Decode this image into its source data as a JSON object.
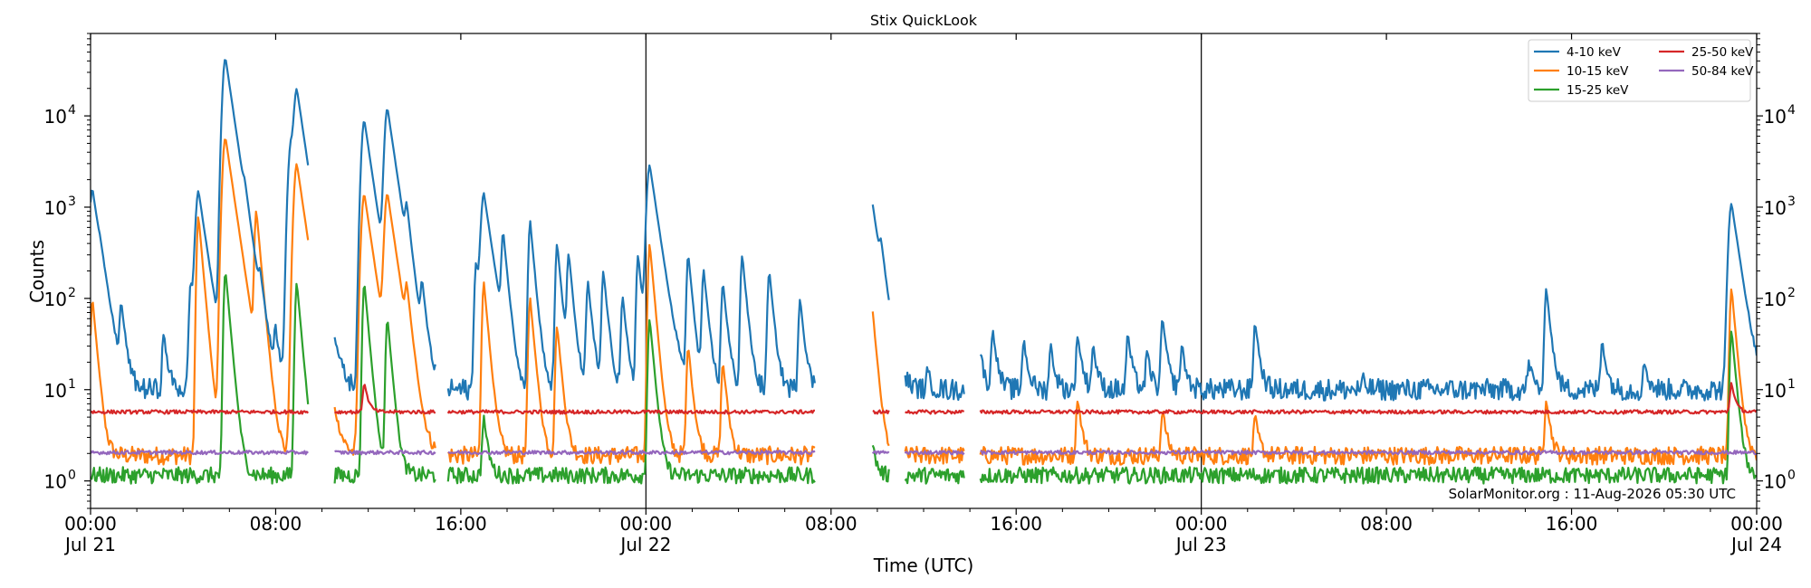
{
  "chart_data": {
    "type": "line",
    "title": "Stix QuickLook",
    "xlabel": "Time (UTC)",
    "ylabel": "Counts",
    "yscale": "log",
    "ylim": [
      0.5,
      80000
    ],
    "xlim": [
      "2026-07-21 00:00",
      "2026-07-24 00:00"
    ],
    "grid": false,
    "legend_position": "top-right",
    "annotation": "SolarMonitor.org : 11-Aug-2026 05:30 UTC",
    "x_ticks": [
      {
        "label": "00:00",
        "sublabel": "Jul 21",
        "time": "2026-07-21 00:00"
      },
      {
        "label": "08:00",
        "sublabel": "",
        "time": "2026-07-21 08:00"
      },
      {
        "label": "16:00",
        "sublabel": "",
        "time": "2026-07-21 16:00"
      },
      {
        "label": "00:00",
        "sublabel": "Jul 22",
        "time": "2026-07-22 00:00"
      },
      {
        "label": "08:00",
        "sublabel": "",
        "time": "2026-07-22 08:00"
      },
      {
        "label": "16:00",
        "sublabel": "",
        "time": "2026-07-22 16:00"
      },
      {
        "label": "00:00",
        "sublabel": "Jul 23",
        "time": "2026-07-23 00:00"
      },
      {
        "label": "08:00",
        "sublabel": "",
        "time": "2026-07-23 08:00"
      },
      {
        "label": "16:00",
        "sublabel": "",
        "time": "2026-07-23 16:00"
      },
      {
        "label": "00:00",
        "sublabel": "Jul 24",
        "time": "2026-07-24 00:00"
      }
    ],
    "y_ticks": [
      {
        "base": "10",
        "exp": "0",
        "value": 1
      },
      {
        "base": "10",
        "exp": "1",
        "value": 10
      },
      {
        "base": "10",
        "exp": "2",
        "value": 100
      },
      {
        "base": "10",
        "exp": "3",
        "value": 1000
      },
      {
        "base": "10",
        "exp": "4",
        "value": 10000
      }
    ],
    "day_boundaries": [
      "2026-07-22 00:00",
      "2026-07-23 00:00"
    ],
    "data_gaps": [
      [
        "2026-07-21 09:25",
        "2026-07-21 10:30"
      ],
      [
        "2026-07-21 14:55",
        "2026-07-21 15:25"
      ],
      [
        "2026-07-22 07:20",
        "2026-07-22 09:45"
      ],
      [
        "2026-07-22 10:30",
        "2026-07-22 11:10"
      ],
      [
        "2026-07-22 13:45",
        "2026-07-22 14:25"
      ]
    ],
    "series": [
      {
        "name": "4-10 keV",
        "color": "#1f77b4",
        "background": 10,
        "noise": 0.12,
        "peaks": [
          {
            "time": "2026-07-21 00:05",
            "value": 1600
          },
          {
            "time": "2026-07-21 00:25",
            "value": 60
          },
          {
            "time": "2026-07-21 01:20",
            "value": 80
          },
          {
            "time": "2026-07-21 03:10",
            "value": 40
          },
          {
            "time": "2026-07-21 04:20",
            "value": 150
          },
          {
            "time": "2026-07-21 04:40",
            "value": 1500
          },
          {
            "time": "2026-07-21 05:40",
            "value": 600
          },
          {
            "time": "2026-07-21 05:50",
            "value": 43000
          },
          {
            "time": "2026-07-21 06:40",
            "value": 500
          },
          {
            "time": "2026-07-21 07:20",
            "value": 100
          },
          {
            "time": "2026-07-21 08:00",
            "value": 40
          },
          {
            "time": "2026-07-21 08:40",
            "value": 5000
          },
          {
            "time": "2026-07-21 08:55",
            "value": 18000
          },
          {
            "time": "2026-07-21 11:50",
            "value": 9000
          },
          {
            "time": "2026-07-21 12:50",
            "value": 12000
          },
          {
            "time": "2026-07-21 13:40",
            "value": 700
          },
          {
            "time": "2026-07-21 14:20",
            "value": 120
          },
          {
            "time": "2026-07-21 16:40",
            "value": 250
          },
          {
            "time": "2026-07-21 17:00",
            "value": 1400
          },
          {
            "time": "2026-07-21 17:50",
            "value": 500
          },
          {
            "time": "2026-07-21 19:00",
            "value": 700
          },
          {
            "time": "2026-07-21 20:10",
            "value": 400
          },
          {
            "time": "2026-07-21 20:40",
            "value": 300
          },
          {
            "time": "2026-07-21 21:30",
            "value": 150
          },
          {
            "time": "2026-07-21 22:10",
            "value": 200
          },
          {
            "time": "2026-07-21 23:00",
            "value": 100
          },
          {
            "time": "2026-07-21 23:40",
            "value": 300
          },
          {
            "time": "2026-07-22 00:10",
            "value": 2900
          },
          {
            "time": "2026-07-22 01:50",
            "value": 300
          },
          {
            "time": "2026-07-22 02:30",
            "value": 200
          },
          {
            "time": "2026-07-22 03:20",
            "value": 150
          },
          {
            "time": "2026-07-22 04:10",
            "value": 300
          },
          {
            "time": "2026-07-22 05:20",
            "value": 200
          },
          {
            "time": "2026-07-22 06:40",
            "value": 100
          },
          {
            "time": "2026-07-22 09:45",
            "value": 1300
          },
          {
            "time": "2026-07-22 10:10",
            "value": 200
          },
          {
            "time": "2026-07-22 12:10",
            "value": 15
          },
          {
            "time": "2026-07-22 14:25",
            "value": 30
          },
          {
            "time": "2026-07-22 15:00",
            "value": 45
          },
          {
            "time": "2026-07-22 16:20",
            "value": 35
          },
          {
            "time": "2026-07-22 17:30",
            "value": 30
          },
          {
            "time": "2026-07-22 18:40",
            "value": 40
          },
          {
            "time": "2026-07-22 19:20",
            "value": 30
          },
          {
            "time": "2026-07-22 20:50",
            "value": 40
          },
          {
            "time": "2026-07-22 21:40",
            "value": 25
          },
          {
            "time": "2026-07-22 22:20",
            "value": 60
          },
          {
            "time": "2026-07-22 23:10",
            "value": 30
          },
          {
            "time": "2026-07-23 02:20",
            "value": 55
          },
          {
            "time": "2026-07-23 07:00",
            "value": 12
          },
          {
            "time": "2026-07-23 14:10",
            "value": 20
          },
          {
            "time": "2026-07-23 14:55",
            "value": 130
          },
          {
            "time": "2026-07-23 17:20",
            "value": 35
          },
          {
            "time": "2026-07-23 19:10",
            "value": 20
          },
          {
            "time": "2026-07-23 22:55",
            "value": 1100
          }
        ]
      },
      {
        "name": "10-15 keV",
        "color": "#ff7f0e",
        "background": 1.9,
        "noise": 0.1,
        "peaks": [
          {
            "time": "2026-07-21 00:05",
            "value": 100
          },
          {
            "time": "2026-07-21 04:40",
            "value": 800
          },
          {
            "time": "2026-07-21 05:50",
            "value": 5800
          },
          {
            "time": "2026-07-21 07:10",
            "value": 900
          },
          {
            "time": "2026-07-21 08:55",
            "value": 3000
          },
          {
            "time": "2026-07-21 11:50",
            "value": 1400
          },
          {
            "time": "2026-07-21 12:50",
            "value": 1400
          },
          {
            "time": "2026-07-21 13:40",
            "value": 100
          },
          {
            "time": "2026-07-21 17:00",
            "value": 150
          },
          {
            "time": "2026-07-21 19:00",
            "value": 100
          },
          {
            "time": "2026-07-21 20:10",
            "value": 50
          },
          {
            "time": "2026-07-22 00:10",
            "value": 400
          },
          {
            "time": "2026-07-22 01:50",
            "value": 30
          },
          {
            "time": "2026-07-22 03:20",
            "value": 20
          },
          {
            "time": "2026-07-22 09:45",
            "value": 100
          },
          {
            "time": "2026-07-22 18:40",
            "value": 8
          },
          {
            "time": "2026-07-22 22:20",
            "value": 6
          },
          {
            "time": "2026-07-23 02:20",
            "value": 5
          },
          {
            "time": "2026-07-23 14:55",
            "value": 8
          },
          {
            "time": "2026-07-23 22:55",
            "value": 130
          }
        ]
      },
      {
        "name": "15-25 keV",
        "color": "#2ca02c",
        "background": 1.15,
        "noise": 0.09,
        "peaks": [
          {
            "time": "2026-07-21 05:50",
            "value": 200
          },
          {
            "time": "2026-07-21 08:55",
            "value": 150
          },
          {
            "time": "2026-07-21 11:50",
            "value": 150
          },
          {
            "time": "2026-07-21 12:50",
            "value": 60
          },
          {
            "time": "2026-07-21 17:00",
            "value": 5
          },
          {
            "time": "2026-07-22 00:10",
            "value": 60
          },
          {
            "time": "2026-07-22 09:45",
            "value": 3
          },
          {
            "time": "2026-07-23 22:55",
            "value": 45
          }
        ]
      },
      {
        "name": "25-50 keV",
        "color": "#d62728",
        "background": 5.7,
        "noise": 0.02,
        "peaks": [
          {
            "time": "2026-07-21 11:50",
            "value": 12
          },
          {
            "time": "2026-07-23 22:55",
            "value": 12
          }
        ]
      },
      {
        "name": "50-84 keV",
        "color": "#9467bd",
        "background": 2.05,
        "noise": 0.02,
        "peaks": []
      }
    ]
  }
}
